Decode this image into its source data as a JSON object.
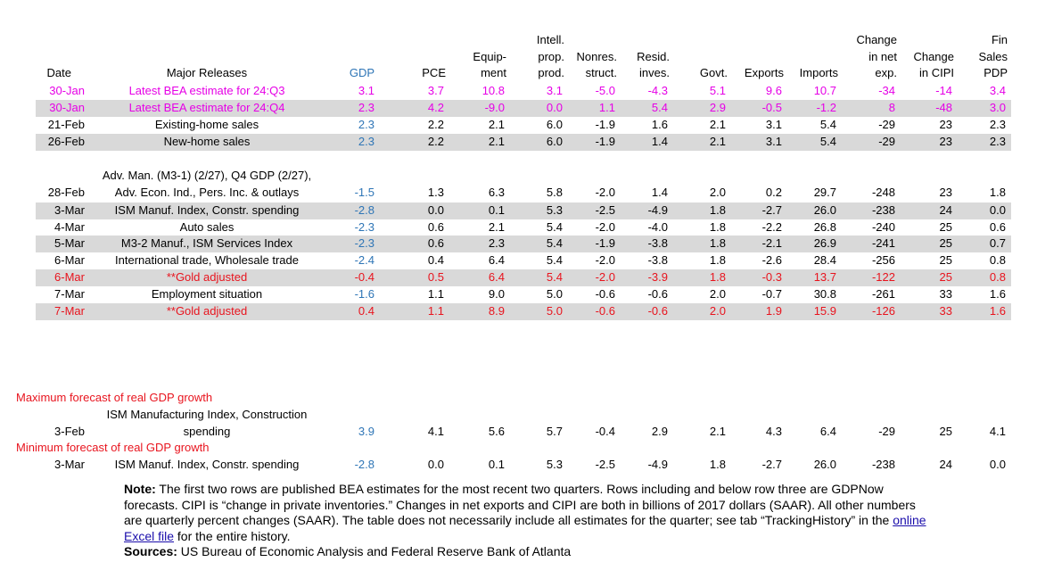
{
  "header": {
    "columns": [
      [
        "Date"
      ],
      [
        "Major Releases"
      ],
      [
        "GDP"
      ],
      [
        "PCE"
      ],
      [
        "Equip-",
        "ment"
      ],
      [
        "Intell.",
        "prop.",
        "prod."
      ],
      [
        "Nonres.",
        "struct."
      ],
      [
        "Resid.",
        "inves."
      ],
      [
        "Govt."
      ],
      [
        "Exports"
      ],
      [
        "Imports"
      ],
      [
        "Change",
        "in net",
        "exp."
      ],
      [
        "Change",
        "in CIPI"
      ],
      [
        "Fin",
        "Sales",
        "PDP"
      ]
    ]
  },
  "table": {
    "rows": [
      {
        "date": "30-Jan",
        "release": [
          "Latest BEA estimate for 24:Q3"
        ],
        "values": [
          "3.1",
          "3.7",
          "10.8",
          "3.1",
          "-5.0",
          "-4.3",
          "5.1",
          "9.6",
          "10.7",
          "-34",
          "-14",
          "3.4"
        ]
      },
      {
        "date": "30-Jan",
        "release": [
          "Latest BEA estimate for 24:Q4"
        ],
        "values": [
          "2.3",
          "4.2",
          "-9.0",
          "0.0",
          "1.1",
          "5.4",
          "2.9",
          "-0.5",
          "-1.2",
          "8",
          "-48",
          "3.0"
        ]
      },
      {
        "date": "21-Feb",
        "release": [
          "Existing-home sales"
        ],
        "values": [
          "2.3",
          "2.2",
          "2.1",
          "6.0",
          "-1.9",
          "1.6",
          "2.1",
          "3.1",
          "5.4",
          "-29",
          "23",
          "2.3"
        ]
      },
      {
        "date": "26-Feb",
        "release": [
          "New-home sales"
        ],
        "values": [
          "2.3",
          "2.2",
          "2.1",
          "6.0",
          "-1.9",
          "1.4",
          "2.1",
          "3.1",
          "5.4",
          "-29",
          "23",
          "2.3"
        ]
      },
      {
        "date": "28-Feb",
        "release": [
          "Adv. Man. (M3-1) (2/27), Q4 GDP (2/27),",
          "Adv. Econ. Ind., Pers. Inc. & outlays"
        ],
        "values": [
          "-1.5",
          "1.3",
          "6.3",
          "5.8",
          "-2.0",
          "1.4",
          "2.0",
          "0.2",
          "29.7",
          "-248",
          "23",
          "1.8"
        ]
      },
      {
        "date": "3-Mar",
        "release": [
          "ISM Manuf. Index, Constr. spending"
        ],
        "values": [
          "-2.8",
          "0.0",
          "0.1",
          "5.3",
          "-2.5",
          "-4.9",
          "1.8",
          "-2.7",
          "26.0",
          "-238",
          "24",
          "0.0"
        ]
      },
      {
        "date": "4-Mar",
        "release": [
          "Auto sales"
        ],
        "values": [
          "-2.3",
          "0.6",
          "2.1",
          "5.4",
          "-2.0",
          "-4.0",
          "1.8",
          "-2.2",
          "26.8",
          "-240",
          "25",
          "0.6"
        ]
      },
      {
        "date": "5-Mar",
        "release": [
          "M3-2 Manuf., ISM Services Index"
        ],
        "values": [
          "-2.3",
          "0.6",
          "2.3",
          "5.4",
          "-1.9",
          "-3.8",
          "1.8",
          "-2.1",
          "26.9",
          "-241",
          "25",
          "0.7"
        ]
      },
      {
        "date": "6-Mar",
        "release": [
          "International trade, Wholesale trade"
        ],
        "values": [
          "-2.4",
          "0.4",
          "6.4",
          "5.4",
          "-2.0",
          "-3.8",
          "1.8",
          "-2.6",
          "28.4",
          "-256",
          "25",
          "0.8"
        ]
      },
      {
        "date": "6-Mar",
        "release": [
          "**Gold adjusted"
        ],
        "values": [
          "-0.4",
          "0.5",
          "6.4",
          "5.4",
          "-2.0",
          "-3.9",
          "1.8",
          "-0.3",
          "13.7",
          "-122",
          "25",
          "0.8"
        ]
      },
      {
        "date": "7-Mar",
        "release": [
          "Employment situation"
        ],
        "values": [
          "-1.6",
          "1.1",
          "9.0",
          "5.0",
          "-0.6",
          "-0.6",
          "2.0",
          "-0.7",
          "30.8",
          "-261",
          "33",
          "1.6"
        ]
      },
      {
        "date": "7-Mar",
        "release": [
          "**Gold adjusted"
        ],
        "values": [
          "0.4",
          "1.1",
          "8.9",
          "5.0",
          "-0.6",
          "-0.6",
          "2.0",
          "1.9",
          "15.9",
          "-126",
          "33",
          "1.6"
        ]
      }
    ]
  },
  "forecasts": [
    {
      "caption": "Maximum forecast of real GDP growth",
      "date": "3-Feb",
      "release": [
        "ISM Manufacturing Index, Construction",
        "spending"
      ],
      "values": [
        "3.9",
        "4.1",
        "5.6",
        "5.7",
        "-0.4",
        "2.9",
        "2.1",
        "4.3",
        "6.4",
        "-29",
        "25",
        "4.1"
      ]
    },
    {
      "caption": "Minimum forecast of real GDP growth",
      "date": "3-Mar",
      "release": [
        "ISM Manuf. Index, Constr. spending"
      ],
      "values": [
        "-2.8",
        "0.0",
        "0.1",
        "5.3",
        "-2.5",
        "-4.9",
        "1.8",
        "-2.7",
        "26.0",
        "-238",
        "24",
        "0.0"
      ]
    }
  ],
  "note": {
    "label": "Note:",
    "text": " The first two rows are published BEA estimates for the most recent two quarters. Rows including and below row three are GDPNow forecasts. CIPI is “change in private inventories.” Changes in net exports and CIPI are both in billions of 2017 dollars (SAAR). All other numbers are quarterly percent changes (SAAR). The table does not necessarily include all estimates for the quarter; see tab “TrackingHistory” in the ",
    "link": "online Excel file",
    "text_after": " for the entire history."
  },
  "sources": {
    "label": "Sources:",
    "text": " US Bureau of Economic Analysis and Federal Reserve Bank of Atlanta"
  }
}
